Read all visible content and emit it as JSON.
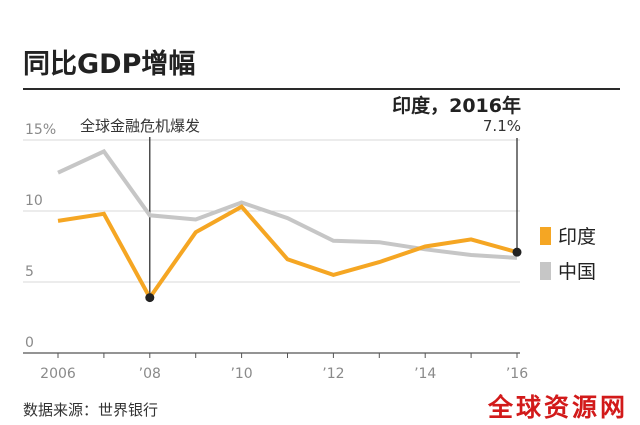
{
  "chart_data": {
    "type": "line",
    "title": "同比GDP增幅",
    "x_tick_labels": [
      "2006",
      "’08",
      "’10",
      "’12",
      "’14",
      "’16"
    ],
    "x_ticks": [
      2006,
      2008,
      2010,
      2012,
      2014,
      2016
    ],
    "y_tick_labels": [
      "15%",
      "10",
      "5",
      "0"
    ],
    "y_ticks": [
      15,
      10,
      5,
      0
    ],
    "xlim": [
      2006,
      2016
    ],
    "ylim": [
      0,
      15
    ],
    "grid": true,
    "legend_position": "right",
    "series": [
      {
        "name": "印度",
        "color": "#f5a623",
        "x": [
          2006,
          2007,
          2008,
          2009,
          2010,
          2011,
          2012,
          2013,
          2014,
          2015,
          2016
        ],
        "values": [
          9.3,
          9.8,
          3.9,
          8.5,
          10.3,
          6.6,
          5.5,
          6.4,
          7.5,
          8.0,
          7.1
        ]
      },
      {
        "name": "中国",
        "color": "#c6c6c6",
        "x": [
          2006,
          2007,
          2008,
          2009,
          2010,
          2011,
          2012,
          2013,
          2014,
          2015,
          2016
        ],
        "values": [
          12.7,
          14.2,
          9.7,
          9.4,
          10.6,
          9.5,
          7.9,
          7.8,
          7.3,
          6.9,
          6.7
        ]
      }
    ],
    "annotations": [
      {
        "text": "全球金融危机爆发",
        "x": 2008,
        "y": 3.9
      },
      {
        "text": "印度，2016年",
        "value_text": "7.1%",
        "x": 2016,
        "y": 7.1
      }
    ]
  },
  "source": "数据来源：世界银行",
  "watermark": "全球资源网"
}
